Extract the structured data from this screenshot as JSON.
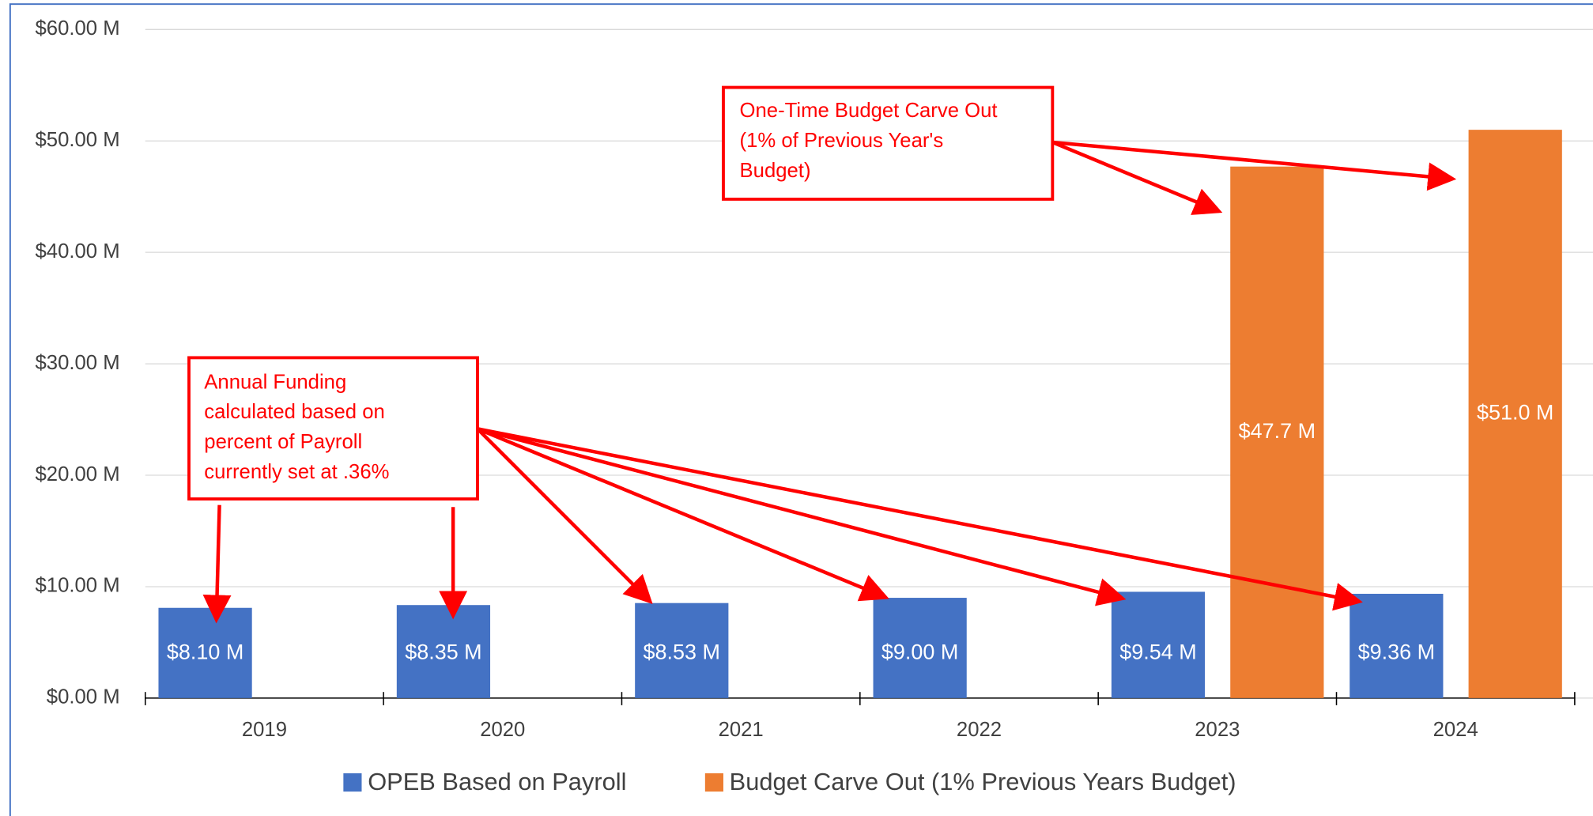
{
  "chart_data": {
    "type": "bar",
    "categories": [
      "2019",
      "2020",
      "2021",
      "2022",
      "2023",
      "2024"
    ],
    "series": [
      {
        "name": "OPEB Based on Payroll",
        "color": "#4472c4",
        "values": [
          8.1,
          8.35,
          8.53,
          9.0,
          9.54,
          9.36
        ],
        "value_labels": [
          "$8.10 M",
          "$8.35 M",
          "$8.53 M",
          "$9.00 M",
          "$9.54 M",
          "$9.36 M"
        ]
      },
      {
        "name": "Budget Carve Out (1% Previous Years Budget)",
        "color": "#ed7d31",
        "values": [
          null,
          null,
          null,
          null,
          47.7,
          51.0
        ],
        "value_labels": [
          null,
          null,
          null,
          null,
          "$47.7 M",
          "$51.0 M"
        ]
      }
    ],
    "ylim": [
      0,
      60
    ],
    "yticks": [
      {
        "value": 0,
        "label": "$0.00 M"
      },
      {
        "value": 10,
        "label": "$10.00 M"
      },
      {
        "value": 20,
        "label": "$20.00 M"
      },
      {
        "value": 30,
        "label": "$30.00 M"
      },
      {
        "value": 40,
        "label": "$40.00 M"
      },
      {
        "value": 50,
        "label": "$50.00 M"
      },
      {
        "value": 60,
        "label": "$60.00 M"
      }
    ],
    "grid": true,
    "legend": "bottom",
    "annotations": [
      {
        "lines": [
          "One-Time Budget Carve Out",
          "(1% of Previous Year's",
          "Budget)"
        ]
      },
      {
        "lines": [
          "Annual Funding",
          "calculated based on",
          "percent of Payroll",
          "currently set at .36%"
        ]
      }
    ]
  }
}
